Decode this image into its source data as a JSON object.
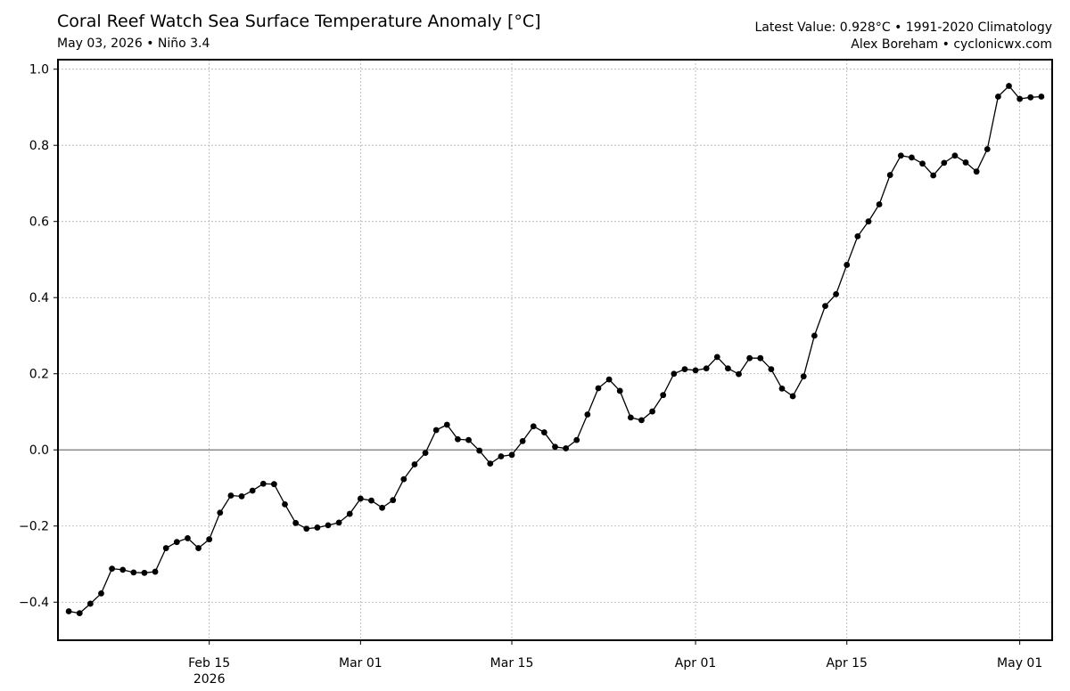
{
  "header": {
    "title": "Coral Reef Watch Sea Surface Temperature Anomaly [°C]",
    "subtitle": "May 03, 2026 • Niño 3.4",
    "latest": "Latest Value: 0.928°C • 1991-2020 Climatology",
    "credit": "Alex Boreham • cyclonicwx.com"
  },
  "chart_data": {
    "type": "line",
    "title": "Coral Reef Watch Sea Surface Temperature Anomaly [°C]",
    "xlabel": "",
    "ylabel": "",
    "ylim": [
      -0.5,
      1.025
    ],
    "xlim": [
      "2026-02-01",
      "2026-05-04"
    ],
    "grid": true,
    "zero_line": true,
    "marker": "circle",
    "line_color": "#000000",
    "y_ticks": [
      {
        "value": -0.4,
        "label": "−0.4"
      },
      {
        "value": -0.2,
        "label": "−0.2"
      },
      {
        "value": 0.0,
        "label": "0.0"
      },
      {
        "value": 0.2,
        "label": "0.2"
      },
      {
        "value": 0.4,
        "label": "0.4"
      },
      {
        "value": 0.6,
        "label": "0.6"
      },
      {
        "value": 0.8,
        "label": "0.8"
      },
      {
        "value": 1.0,
        "label": "1.0"
      }
    ],
    "x_ticks": [
      {
        "date": "2026-02-15",
        "label": "Feb 15",
        "sublabel": "2026"
      },
      {
        "date": "2026-03-01",
        "label": "Mar 01",
        "sublabel": ""
      },
      {
        "date": "2026-03-15",
        "label": "Mar 15",
        "sublabel": ""
      },
      {
        "date": "2026-04-01",
        "label": "Apr 01",
        "sublabel": ""
      },
      {
        "date": "2026-04-15",
        "label": "Apr 15",
        "sublabel": ""
      },
      {
        "date": "2026-05-01",
        "label": "May 01",
        "sublabel": ""
      }
    ],
    "x": [
      "2026-02-02",
      "2026-02-03",
      "2026-02-04",
      "2026-02-05",
      "2026-02-06",
      "2026-02-07",
      "2026-02-08",
      "2026-02-09",
      "2026-02-10",
      "2026-02-11",
      "2026-02-12",
      "2026-02-13",
      "2026-02-14",
      "2026-02-15",
      "2026-02-16",
      "2026-02-17",
      "2026-02-18",
      "2026-02-19",
      "2026-02-20",
      "2026-02-21",
      "2026-02-22",
      "2026-02-23",
      "2026-02-24",
      "2026-02-25",
      "2026-02-26",
      "2026-02-27",
      "2026-02-28",
      "2026-03-01",
      "2026-03-02",
      "2026-03-03",
      "2026-03-04",
      "2026-03-05",
      "2026-03-06",
      "2026-03-07",
      "2026-03-08",
      "2026-03-09",
      "2026-03-10",
      "2026-03-11",
      "2026-03-12",
      "2026-03-13",
      "2026-03-14",
      "2026-03-15",
      "2026-03-16",
      "2026-03-17",
      "2026-03-18",
      "2026-03-19",
      "2026-03-20",
      "2026-03-21",
      "2026-03-22",
      "2026-03-23",
      "2026-03-24",
      "2026-03-25",
      "2026-03-26",
      "2026-03-27",
      "2026-03-28",
      "2026-03-29",
      "2026-03-30",
      "2026-03-31",
      "2026-04-01",
      "2026-04-02",
      "2026-04-03",
      "2026-04-04",
      "2026-04-05",
      "2026-04-06",
      "2026-04-07",
      "2026-04-08",
      "2026-04-09",
      "2026-04-10",
      "2026-04-11",
      "2026-04-12",
      "2026-04-13",
      "2026-04-14",
      "2026-04-15",
      "2026-04-16",
      "2026-04-17",
      "2026-04-18",
      "2026-04-19",
      "2026-04-20",
      "2026-04-21",
      "2026-04-22",
      "2026-04-23",
      "2026-04-24",
      "2026-04-25",
      "2026-04-26",
      "2026-04-27",
      "2026-04-28",
      "2026-04-29",
      "2026-04-30",
      "2026-05-01",
      "2026-05-02",
      "2026-05-03"
    ],
    "series": [
      {
        "values": [
          -0.424,
          -0.429,
          -0.404,
          -0.377,
          -0.312,
          -0.315,
          -0.322,
          -0.323,
          -0.32,
          -0.258,
          -0.242,
          -0.232,
          -0.258,
          -0.235,
          -0.165,
          -0.12,
          -0.122,
          -0.107,
          -0.089,
          -0.09,
          -0.143,
          -0.192,
          -0.207,
          -0.204,
          -0.198,
          -0.191,
          -0.168,
          -0.128,
          -0.133,
          -0.152,
          -0.132,
          -0.077,
          -0.038,
          -0.008,
          0.052,
          0.066,
          0.028,
          0.026,
          -0.002,
          -0.036,
          -0.017,
          -0.013,
          0.023,
          0.062,
          0.046,
          0.008,
          0.004,
          0.026,
          0.093,
          0.162,
          0.185,
          0.155,
          0.085,
          0.078,
          0.101,
          0.144,
          0.2,
          0.212,
          0.209,
          0.214,
          0.244,
          0.214,
          0.199,
          0.241,
          0.241,
          0.212,
          0.161,
          0.141,
          0.193,
          0.3,
          0.378,
          0.409,
          0.486,
          0.561,
          0.6,
          0.645,
          0.722,
          0.773,
          0.768,
          0.752,
          0.721,
          0.754,
          0.773,
          0.755,
          0.731,
          0.79,
          0.928,
          0.956,
          0.922,
          0.926,
          0.928
        ]
      }
    ]
  }
}
